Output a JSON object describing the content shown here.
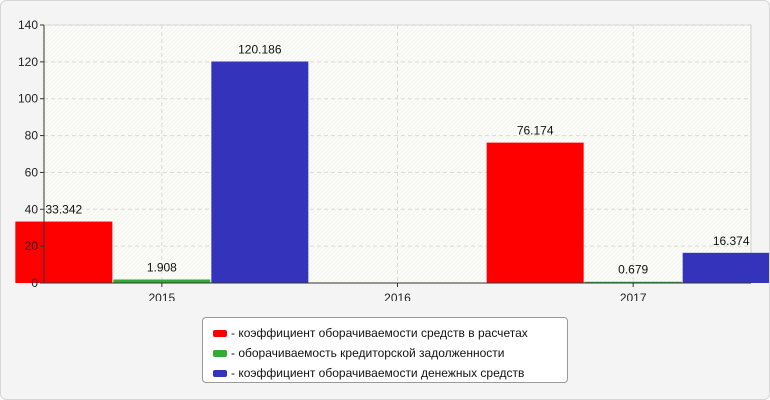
{
  "chart_data": {
    "type": "bar",
    "categories": [
      "2015",
      "2016",
      "2017"
    ],
    "series": [
      {
        "name": "- коэффициент оборачиваемости средств в расчетах",
        "color": "#ff0000",
        "values": [
          33.342,
          null,
          76.174
        ]
      },
      {
        "name": "- оборачиваемость кредиторской задолженности",
        "color": "#33aa33",
        "values": [
          1.908,
          null,
          0.679
        ]
      },
      {
        "name": "- коэффициент оборачиваемости денежных средств",
        "color": "#3333bb",
        "values": [
          120.186,
          null,
          16.374
        ]
      }
    ],
    "value_labels": [
      {
        "series": 0,
        "category": 0,
        "text": "33.342"
      },
      {
        "series": 1,
        "category": 0,
        "text": "1.908"
      },
      {
        "series": 2,
        "category": 0,
        "text": "120.186"
      },
      {
        "series": 0,
        "category": 2,
        "text": "76.174"
      },
      {
        "series": 1,
        "category": 2,
        "text": "0.679"
      },
      {
        "series": 2,
        "category": 2,
        "text": "16.374"
      }
    ],
    "yticks": [
      "0",
      "20",
      "40",
      "60",
      "80",
      "100",
      "120",
      "140"
    ],
    "ylim": [
      0,
      140
    ],
    "grid": true,
    "legend_position": "bottom-center"
  }
}
